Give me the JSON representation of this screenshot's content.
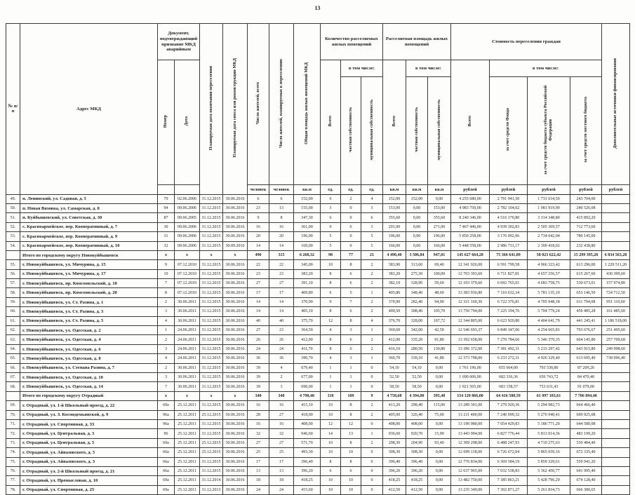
{
  "page": {
    "number": "13"
  },
  "table": {
    "header": {
      "col_num": "№ п/п",
      "col_address": "Адрес МКД",
      "group_doc": "Документ, подтверждаю­щий признание МКД аварийным",
      "doc_number": "Номер",
      "doc_date": "Дата",
      "col_end_date": "Планируемая дата окончания переселения",
      "col_demolition_date": "Планируемая дата сноса или реконструкции МКД",
      "col_residents_total": "Число жителей, всего",
      "col_residents_plan": "Число жителей, планируемых к переселению",
      "col_mkd_area": "Общая площадь жилых помещений МКД",
      "group_units": "Количество расселяемых жилых помещений",
      "group_resettle_area": "Расселяемая площадь жилых помещений",
      "group_cost": "Стоимость переселения граждан",
      "col_add_sources": "Дополнительные источники финансирования",
      "label_total": "Всего",
      "label_incl": "в том числе:",
      "label_private": "частная собственность",
      "label_municipal": "муниципальная собственность",
      "cost_fund": "за счет средств Фонда",
      "cost_subject": "за счет средств бюджета субъекта Российской Федерации",
      "cost_local": "за счет средств местного бюджета",
      "units_row": [
        "",
        "",
        "человек",
        "человек",
        "кв.м",
        "ед.",
        "ед.",
        "ед.",
        "кв.м",
        "кв.м",
        "кв.м",
        "рублей",
        "рублей",
        "рублей",
        "рублей",
        "рублей"
      ]
    },
    "rows": [
      {
        "total": false,
        "cells": [
          "49.",
          "п. Ленинский, ул. Садовая, д. 5",
          "79",
          "02.06.2006",
          "31.12.2015",
          "30.06.2016",
          "6",
          "6",
          "152,00",
          "6",
          "2",
          "4",
          "152,00",
          "152,00",
          "0,00",
          "4 255 680,00",
          "2 791 941,50",
          "1 731 634,50",
          "243 704,00",
          ""
        ]
      },
      {
        "total": false,
        "cells": [
          "50.",
          "п. Новая Вязовка, ул. Самарская, д. 8",
          "94",
          "09.06.2006",
          "31.12.2015",
          "30.06.2016",
          "23",
          "13",
          "155,00",
          "3",
          "0",
          "3",
          "153,00",
          "0,00",
          "153,00",
          "4 983 750,00",
          "2 782 104,02",
          "1 981 919,90",
          "240 526,08",
          ""
        ]
      },
      {
        "total": false,
        "cells": [
          "51.",
          "п. Куйбышевский, ул. Советская, д. 30",
          "87",
          "09.06.2005",
          "31.12.2015",
          "30.06.2016",
          "9",
          "8",
          "347,30",
          "6",
          "0",
          "6",
          "355,60",
          "0,00",
          "355,60",
          "8 240 346,00",
          "4 516 170,80",
          "3 314 348,80",
          "415 892,20",
          ""
        ]
      },
      {
        "total": false,
        "cells": [
          "52.",
          "с. Красноармейское, пер. Кооперативный, д. 7",
          "30",
          "09.06.2006",
          "31.12.2015",
          "30.06.2016",
          "16",
          "16",
          "361,00",
          "9",
          "6",
          "3",
          "291,00",
          "0,00",
          "271,00",
          "7 467 446,00",
          "4 939 302,83",
          "2 505 369,57",
          "712 773,60",
          ""
        ]
      },
      {
        "total": false,
        "cells": [
          "53.",
          "с. Красноармейское, пер. Кооперативный, д. 9",
          "31",
          "09.06.2006",
          "31.12.2015",
          "30.06.2016",
          "20",
          "20",
          "196,00",
          "5",
          "0",
          "5",
          "196,00",
          "0,00",
          "196,00",
          "5 850 258,00",
          "3 176 092,96",
          "2 734 042,04",
          "780 145,00",
          ""
        ]
      },
      {
        "total": false,
        "cells": [
          "54.",
          "с. Красноармейское, пер. Кооперативный, д. 10",
          "32",
          "09.06.2006",
          "31.12.2015",
          "30.09.2016",
          "14",
          "14",
          "169,00",
          "5",
          "0",
          "5",
          "166,00",
          "0,00",
          "166,00",
          "5 448 558,00",
          "2 986 731,17",
          "2 399 418,02",
          "232 438,80",
          ""
        ]
      },
      {
        "total": true,
        "cells": [
          "",
          "Итого по городскому округу Новокуйбышевск",
          "х",
          "х",
          "х",
          "х",
          "490",
          "315",
          "6 268,32",
          "98",
          "77",
          "21",
          "4 490,40",
          "3 506,84",
          "947,01",
          "145 627 664,28",
          "75 366 641,89",
          "58 023 622,42",
          "15 299 395,28",
          "6 834 563,28"
        ]
      },
      {
        "total": false,
        "cells": [
          "55.",
          "г. Новокуйбышевск, ул. Мичурина, д. 15",
          "9",
          "07.12.2010",
          "31.12.2015",
          "30.06.2016",
          "22",
          "22",
          "345,00",
          "10",
          "8",
          "2",
          "383,90",
          "313,60",
          "69,40",
          "12 341 926,00",
          "6 591 799,58",
          "4 966 323,42",
          "613 296,00",
          "1 229 511,20"
        ]
      },
      {
        "total": false,
        "cells": [
          "56.",
          "г. Новокуйбышевск, ул. Мичурина, д. 17",
          "10",
          "07.12.2010",
          "31.12.2015",
          "30.06.2016",
          "23",
          "23",
          "383,20",
          "8",
          "6",
          "2",
          "383,20",
          "275,30",
          "100,00",
          "12 703 393,60",
          "6 711 827,81",
          "4 657 256,57",
          "615 267,60",
          "430 399,60"
        ]
      },
      {
        "total": false,
        "cells": [
          "57.",
          "г. Новокуйбышевск, пр. Комсомольский, д. 18",
          "7",
          "07.12.2010",
          "31.12.2015",
          "30.06.2016",
          "27",
          "27",
          "391,10",
          "8",
          "6",
          "2",
          "382,10",
          "328,90",
          "59,60",
          "12 103 379,60",
          "6 692 765,01",
          "4 683 758,75",
          "530 673,01",
          "157 974,80"
        ]
      },
      {
        "total": false,
        "cells": [
          "58.",
          "г. Новокуйбышевск, пр. Комсомольский, д. 20",
          "8",
          "07.12.2010",
          "31.12.2015",
          "30.06.2016",
          "17",
          "17",
          "409,80",
          "6",
          "5",
          "1",
          "405,80",
          "348,40",
          "48,60",
          "13 383 936,80",
          "7 110 632,34",
          "5 781 135,10",
          "653 146,50",
          "724 712,50"
        ]
      },
      {
        "total": false,
        "cells": [
          "59.",
          "г. Новокуйбышевск, ул. Ст. Разина, д. 1",
          "2",
          "30.06.2011",
          "31.12.2015",
          "30.06.2016",
          "14",
          "14",
          "370,90",
          "9",
          "7",
          "2",
          "370,90",
          "282,40",
          "94,90",
          "12 321 160,30",
          "6 722 376,81",
          "4 705 948,18",
          "611 794,08",
          "951 110,60"
        ]
      },
      {
        "total": false,
        "cells": [
          "60.",
          "г. Новокуйбышевск, ул. Ст. Разина, д. 3",
          "3",
          "30.06.2011",
          "31.12.2015",
          "30.06.2016",
          "14",
          "14",
          "405,10",
          "8",
          "6",
          "2",
          "409,50",
          "308,40",
          "105,70",
          "13 750 794,00",
          "7 225 194,76",
          "5 704 779,24",
          "459 485,28",
          "161 485,60"
        ]
      },
      {
        "total": false,
        "cells": [
          "61.",
          "г. Новокуйбышевск, ул. Ст. Разина, д. 5",
          "4",
          "30.06.2011",
          "31.12.2015",
          "30.06.2016",
          "40",
          "40",
          "375,70",
          "12",
          "8",
          "4",
          "376,70",
          "328,00",
          "107,72",
          "12 344 805,00",
          "6 623 920,80",
          "4 404 641,79",
          "441 245,41",
          "1 186 518,00"
        ]
      },
      {
        "total": false,
        "cells": [
          "62.",
          "г. Новокуйбышевск, ул. Одесская, д. 2",
          "1",
          "24.06.2011",
          "31.12.2015",
          "30.06.2016",
          "27",
          "23",
          "364,50",
          "4",
          "3",
          "1",
          "369,60",
          "342,00",
          "42,50",
          "12 546 693,37",
          "6 849 347,06",
          "4 254 665,81",
          "793 676,67",
          "251 495,60"
        ]
      },
      {
        "total": false,
        "cells": [
          "63.",
          "г. Новокуйбышевск, ул. Одесская, д. 4",
          "2",
          "24.06.2011",
          "31.12.2015",
          "30.06.2016",
          "26",
          "26",
          "412,00",
          "8",
          "6",
          "2",
          "412,00",
          "335,20",
          "91,80",
          "13 392 658,00",
          "7 270 784,66",
          "5 346 379,35",
          "664 145,80",
          "257 709,68"
        ]
      },
      {
        "total": false,
        "cells": [
          "64.",
          "г. Новокуйбышевск, ул. Одесская, д. 6",
          "3",
          "24.06.2011",
          "31.12.2015",
          "30.06.2016",
          "24",
          "24",
          "411,70",
          "8",
          "6",
          "2",
          "416,10",
          "280,50",
          "130,80",
          "13 396 372,00",
          "7 381 492,31",
          "5 233 297,42",
          "643 915,80",
          "249 998,60"
        ]
      },
      {
        "total": false,
        "cells": [
          "65.",
          "г. Новокуйбышевск, ул. Одесская, д. 8",
          "4",
          "24.06.2011",
          "31.12.2015",
          "30.06.2016",
          "36",
          "36",
          "390,70",
          "4",
          "3",
          "1",
          "360,70",
          "339,10",
          "41,80",
          "12 373 798,00",
          "6 233 272,31",
          "4 926 329,40",
          "613 695,40",
          "738 096,40"
        ]
      },
      {
        "total": false,
        "cells": [
          "66.",
          "г. Новокуйбышевск, ул. Степана Разина, д. 7",
          "2",
          "30.06.2011",
          "31.12.2015",
          "30.06.2016",
          "39",
          "4",
          "679,40",
          "1",
          "1",
          "0",
          "54,10",
          "54,10",
          "0,00",
          "1 761 196,00",
          "655 664,00",
          "793 530,80",
          "87 209,20",
          ""
        ]
      },
      {
        "total": false,
        "cells": [
          "67.",
          "г. Новокуйбышевск, ул. Одесская, д. 10",
          "3",
          "30.06.2011",
          "31.12.2015",
          "30.06.2016",
          "39",
          "2",
          "677,00",
          "1",
          "1",
          "0",
          "52,50",
          "52,50",
          "0,00",
          "1 690 606,00",
          "682 336,36",
          "656 743,72",
          "84 470,40",
          ""
        ]
      },
      {
        "total": false,
        "cells": [
          "68.",
          "г. Новокуйбышевск, ул. Одесская, д. 14",
          "7",
          "30.06.2011",
          "31.12.2015",
          "30.06.2016",
          "39",
          "3",
          "690,00",
          "1",
          "1",
          "0",
          "58,50",
          "58,50",
          "0,00",
          "1 921 565,00",
          "683 158,57",
          "753 631,43",
          "91 079,00",
          ""
        ]
      },
      {
        "total": true,
        "cells": [
          "",
          "Итого по городскому округу Отрадный",
          "х",
          "х",
          "х",
          "х",
          "348",
          "340",
          "4 798,40",
          "118",
          "109",
          "9",
          "4 758,68",
          "4 394,00",
          "395,48",
          "154 129 866,00",
          "64 416 588,59",
          "61 997 183,61",
          "7 706 094,40",
          ""
        ]
      },
      {
        "total": false,
        "cells": [
          "69.",
          "г. Отрадный, ул. 1-й Школьный проезд, д. 22",
          "69а",
          "25.12.2011",
          "31.12.2015",
          "30.06.2016",
          "16",
          "16",
          "415,10",
          "10",
          "8",
          "2",
          "413,20",
          "298,40",
          "115,00",
          "13 289 301,00",
          "7 279 920,36",
          "5 294 982,73",
          "664 466,40",
          ""
        ]
      },
      {
        "total": false,
        "cells": [
          "70.",
          "г. Отрадный, ул. З. Космодемьянской, д. 9",
          "96а",
          "25.12.2011",
          "25.12.2015",
          "30.06.2016",
          "28",
          "27",
          "418,00",
          "10",
          "8",
          "2",
          "405,00",
          "326,40",
          "75,00",
          "13 211 400,00",
          "7 240 099,32",
          "5 276 940,41",
          "699 925,08",
          ""
        ]
      },
      {
        "total": false,
        "cells": [
          "71.",
          "г. Отрадный, ул. Спортивная, д. 33",
          "96а",
          "25.12.2011",
          "31.12.2015",
          "30.06.2016",
          "16",
          "16",
          "408,00",
          "12",
          "12",
          "0",
          "408,00",
          "408,00",
          "0,00",
          "13 190 980,00",
          "7 054 429,83",
          "5 186 771,20",
          "644 580,08",
          ""
        ]
      },
      {
        "total": false,
        "cells": [
          "72.",
          "г. Отрадный, ул. Центральная, д. 3",
          "96",
          "25.12.2011",
          "31.12.2015",
          "30.06.2016",
          "32",
          "32",
          "946,60",
          "14",
          "13",
          "1",
          "936,60",
          "920,70",
          "15,90",
          "13 443 994,00",
          "6 827 776,44",
          "5 813 014,36",
          "483 199,20",
          ""
        ]
      },
      {
        "total": false,
        "cells": [
          "73.",
          "г. Отрадный, ул. Центральная, д. 5",
          "69а",
          "25.12.2011",
          "25.12.2015",
          "30.06.2016",
          "27",
          "27",
          "571,70",
          "10",
          "8",
          "2",
          "298,30",
          "204,90",
          "93,40",
          "12 309 298,00",
          "6 488 247,93",
          "4 710 275,63",
          "539 484,40",
          ""
        ]
      },
      {
        "total": false,
        "cells": [
          "74.",
          "г. Отрадный, ул. Айвазовского, д. 5",
          "66а",
          "25.12.2011",
          "25.12.2015",
          "30.06.2016",
          "25",
          "25",
          "493,30",
          "10",
          "10",
          "0",
          "308,30",
          "308,30",
          "0,00",
          "12 699 118,00",
          "6 726 672,04",
          "5 865 659,16",
          "672 335,40",
          ""
        ]
      },
      {
        "total": false,
        "cells": [
          "75.",
          "г. Отрадный, ул. Айвазовского, д. 3",
          "66а",
          "25.12.2011",
          "31.12.2015",
          "30.06.2016",
          "17",
          "17",
          "396,40",
          "8",
          "8",
          "0",
          "396,40",
          "396,40",
          "0,00",
          "12 776 834,00",
          "6 369 584,19",
          "5 859 329,61",
          "559 941,20",
          ""
        ]
      },
      {
        "total": false,
        "cells": [
          "76.",
          "г. Отрадный, ул. 2-й Школьный проезд, д. 21",
          "66а",
          "25.12.2011",
          "31.12.2015",
          "30.06.2016",
          "13",
          "13",
          "396,20",
          "6",
          "6",
          "0",
          "396,20",
          "396,20",
          "0,00",
          "12 637 965,00",
          "7 032 538,83",
          "5 362 450,77",
          "641 995,40",
          ""
        ]
      },
      {
        "total": false,
        "cells": [
          "77.",
          "г. Отрадный, ул. Промысловая, д. 10",
          "69а",
          "25.12.2011",
          "31.12.2014",
          "30.06.2016",
          "18",
          "18",
          "418,25",
          "10",
          "10",
          "0",
          "418,25",
          "418,25",
          "0,00",
          "13 482 750,00",
          "7 385 863,21",
          "5 428 796,29",
          "674 128,40",
          ""
        ]
      },
      {
        "total": false,
        "cells": [
          "78.",
          "г. Отрадный, ул. Спортивная, д. 25",
          "69а",
          "25.12.2011",
          "31.12.2013",
          "30.06.2016",
          "24",
          "24",
          "415,60",
          "10",
          "10",
          "0",
          "412,50",
          "412,50",
          "0,00",
          "13 235 349,00",
          "7 302 871,27",
          "5 261 834,73",
          "666 380,65",
          ""
        ]
      }
    ]
  }
}
